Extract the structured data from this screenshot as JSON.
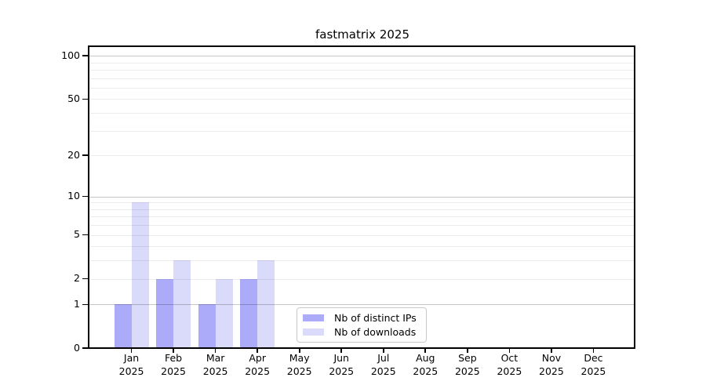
{
  "title": "fastmatrix 2025",
  "chart_data": {
    "type": "bar",
    "title": "fastmatrix 2025",
    "months": [
      "Jan",
      "Feb",
      "Mar",
      "Apr",
      "May",
      "Jun",
      "Jul",
      "Aug",
      "Sep",
      "Oct",
      "Nov",
      "Dec"
    ],
    "year": "2025",
    "categories": [
      "Jan 2025",
      "Feb 2025",
      "Mar 2025",
      "Apr 2025",
      "May 2025",
      "Jun 2025",
      "Jul 2025",
      "Aug 2025",
      "Sep 2025",
      "Oct 2025",
      "Nov 2025",
      "Dec 2025"
    ],
    "series": [
      {
        "name": "Nb of distinct IPs",
        "color": "#ababfa",
        "values": [
          1,
          2,
          1,
          2,
          0,
          0,
          0,
          0,
          0,
          0,
          0,
          0
        ]
      },
      {
        "name": "Nb of downloads",
        "color": "#dadafa",
        "values": [
          9,
          3,
          2,
          3,
          0,
          0,
          0,
          0,
          0,
          0,
          0,
          0
        ]
      }
    ],
    "y_axis": {
      "scale": "log1p",
      "tick_values": [
        0,
        1,
        2,
        5,
        10,
        20,
        50,
        100
      ],
      "tick_labels": [
        "0",
        "1",
        "2",
        "5",
        "10",
        "20",
        "50",
        "100"
      ],
      "major_gridlines": [
        1,
        10,
        100
      ],
      "minor_gridlines": [
        2,
        3,
        4,
        5,
        6,
        7,
        8,
        9,
        20,
        30,
        40,
        50,
        60,
        70,
        80,
        90
      ],
      "range": [
        0,
        116
      ]
    },
    "xlabel": "",
    "ylabel": "",
    "grid": "horizontal",
    "legend": {
      "position": "bottom-center",
      "entries": [
        "Nb of distinct IPs",
        "Nb of downloads"
      ]
    },
    "colors": {
      "background": "#ffffff",
      "spine": "#000000",
      "bar_distinct_ips": "#ababfa",
      "bar_downloads": "#dadafa"
    }
  }
}
